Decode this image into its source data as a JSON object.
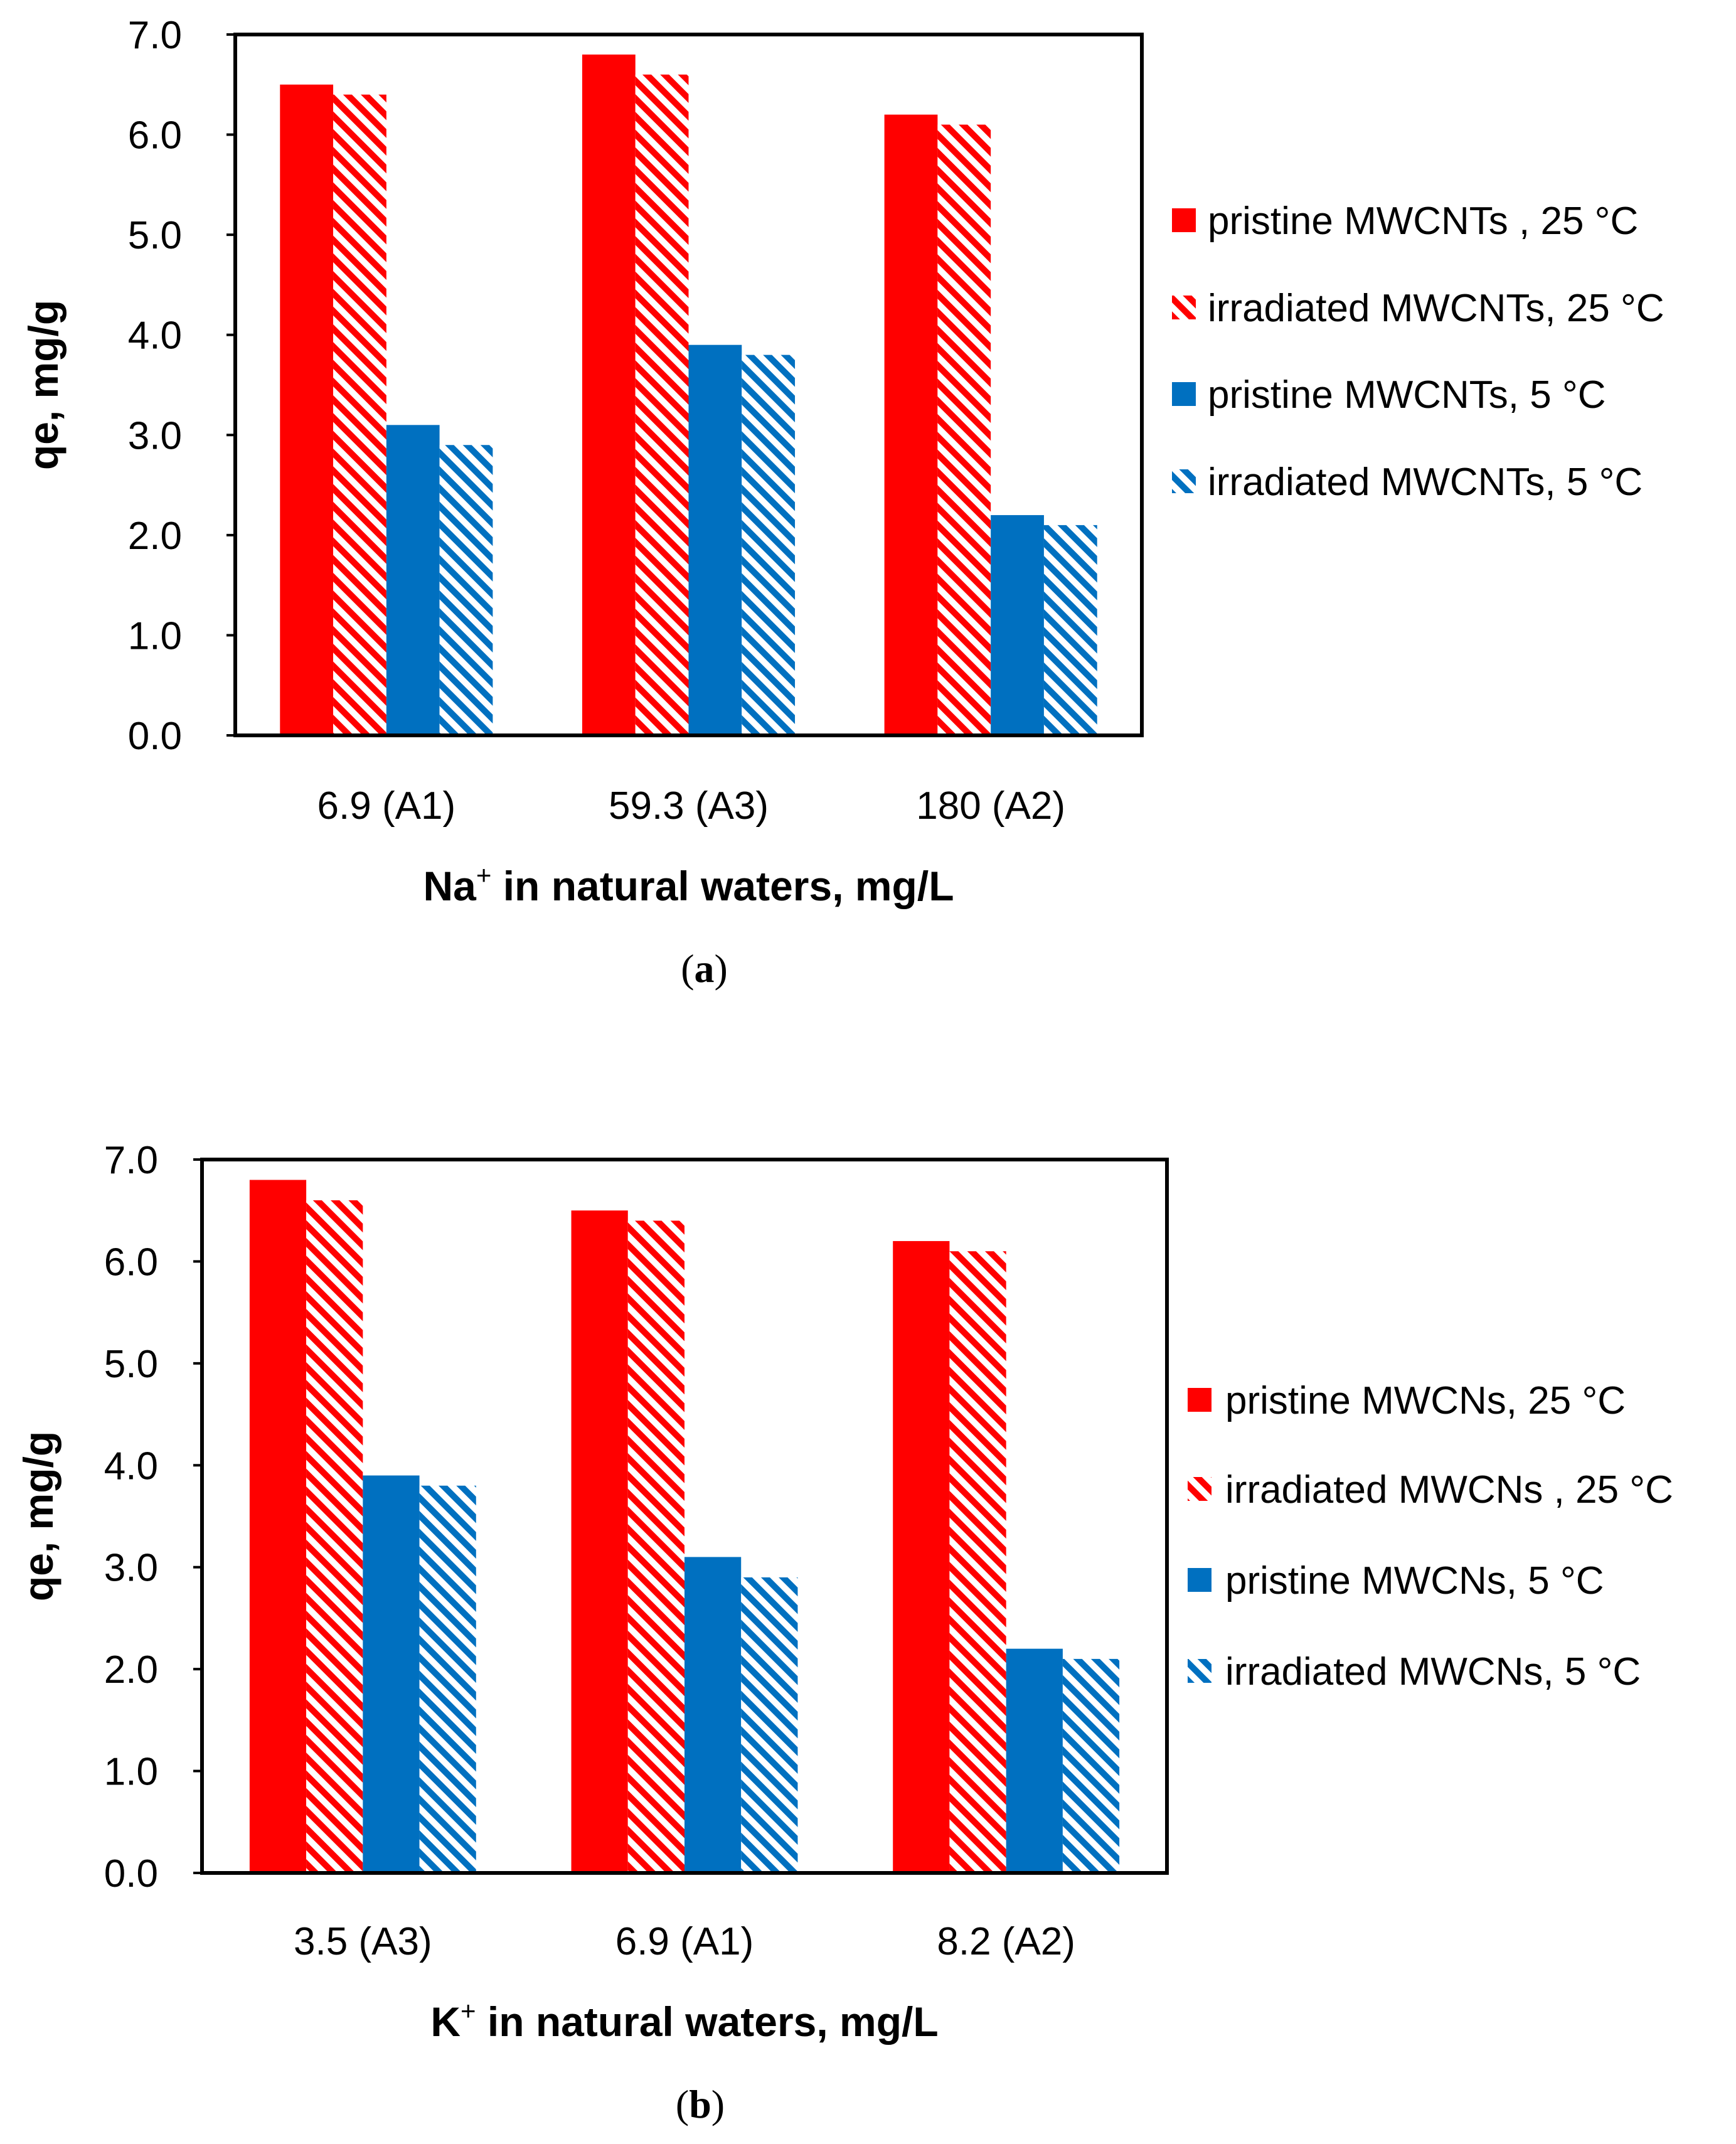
{
  "chart_data": [
    {
      "type": "bar",
      "panel_label": "a",
      "categories": [
        "6.9 (A1)",
        "59.3 (A3)",
        "180 (A2)"
      ],
      "series": [
        {
          "name": "pristine MWCNTs , 25 °C",
          "color": "#ff0000",
          "pattern": "solid",
          "values": [
            6.5,
            6.8,
            6.2
          ]
        },
        {
          "name": "irradiated MWCNTs, 25 °C",
          "color": "#ff0000",
          "pattern": "hatched",
          "values": [
            6.4,
            6.6,
            6.1
          ]
        },
        {
          "name": "pristine MWCNTs, 5 °C",
          "color": "#0070c0",
          "pattern": "solid",
          "values": [
            3.1,
            3.9,
            2.2
          ]
        },
        {
          "name": "irradiated MWCNTs, 5 °C",
          "color": "#0070c0",
          "pattern": "hatched",
          "values": [
            2.9,
            3.8,
            2.1
          ]
        }
      ],
      "xlabel": {
        "main": "Na",
        "sup": "+",
        "rest": " in natural waters, mg/L"
      },
      "ylabel": "qe, mg/g",
      "ylim": [
        0,
        7
      ],
      "yticks": [
        "0.0",
        "1.0",
        "2.0",
        "3.0",
        "4.0",
        "5.0",
        "6.0",
        "7.0"
      ],
      "grid": false,
      "legend_position": "right"
    },
    {
      "type": "bar",
      "panel_label": "b",
      "categories": [
        "3.5 (A3)",
        "6.9 (A1)",
        "8.2 (A2)"
      ],
      "series": [
        {
          "name": "pristine MWCNs, 25 °C",
          "color": "#ff0000",
          "pattern": "solid",
          "values": [
            6.8,
            6.5,
            6.2
          ]
        },
        {
          "name": "irradiated MWCNs , 25 °C",
          "color": "#ff0000",
          "pattern": "hatched",
          "values": [
            6.6,
            6.4,
            6.1
          ]
        },
        {
          "name": "pristine MWCNs, 5 °C",
          "color": "#0070c0",
          "pattern": "solid",
          "values": [
            3.9,
            3.1,
            2.2
          ]
        },
        {
          "name": "irradiated MWCNs, 5 °C",
          "color": "#0070c0",
          "pattern": "hatched",
          "values": [
            3.8,
            2.9,
            2.1
          ]
        }
      ],
      "xlabel": {
        "main": "K",
        "sup": "+",
        "rest": " in natural waters, mg/L"
      },
      "ylabel": "qe, mg/g",
      "ylim": [
        0,
        7
      ],
      "yticks": [
        "0.0",
        "1.0",
        "2.0",
        "3.0",
        "4.0",
        "5.0",
        "6.0",
        "7.0"
      ],
      "grid": false,
      "legend_position": "right"
    }
  ]
}
